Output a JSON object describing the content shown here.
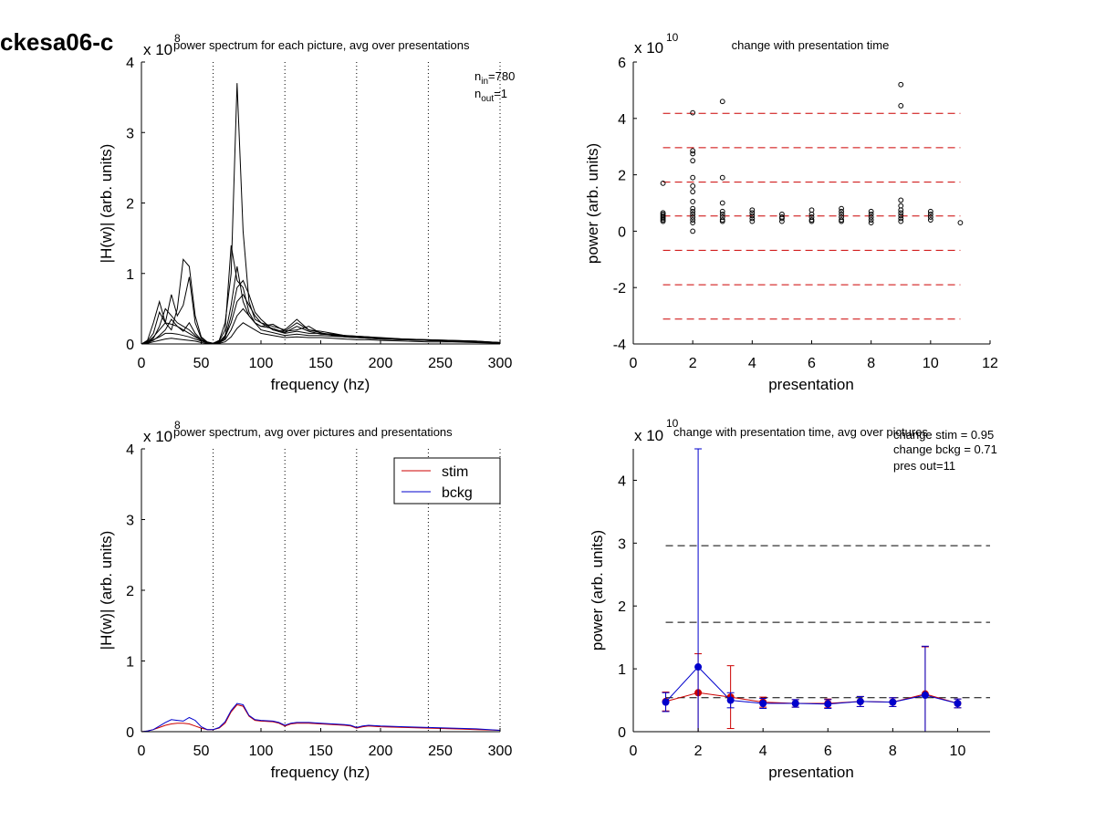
{
  "figure_title": "ckesa06-c",
  "chart_data": [
    {
      "id": "top-left",
      "type": "line",
      "title": "power spectrum for each picture, avg over presentations",
      "xlabel": "frequency (hz)",
      "ylabel": "|H(w)| (arb. units)",
      "y_multiplier": "x 10",
      "y_exponent": "8",
      "xlim": [
        0,
        300
      ],
      "ylim": [
        0,
        4
      ],
      "xticks": [
        0,
        50,
        100,
        150,
        200,
        250,
        300
      ],
      "yticks": [
        0,
        1,
        2,
        3,
        4
      ],
      "vlines": [
        60,
        120,
        180,
        240,
        300
      ],
      "annotation": {
        "n_in_label": "n",
        "n_in_sub": "in",
        "n_in_value": "=780",
        "n_out_label": "n",
        "n_out_sub": "out",
        "n_out_value": "=1"
      },
      "x": [
        0,
        5,
        10,
        15,
        20,
        25,
        30,
        35,
        40,
        45,
        50,
        55,
        60,
        65,
        70,
        75,
        80,
        85,
        90,
        95,
        100,
        110,
        120,
        130,
        140,
        150,
        160,
        170,
        180,
        190,
        200,
        220,
        240,
        260,
        280,
        300
      ],
      "series": [
        {
          "values": [
            0,
            0.02,
            0.06,
            0.1,
            0.15,
            0.15,
            0.14,
            0.12,
            0.1,
            0.07,
            0.04,
            0.02,
            0.01,
            0.02,
            0.06,
            0.2,
            0.4,
            0.5,
            0.4,
            0.3,
            0.2,
            0.16,
            0.12,
            0.14,
            0.12,
            0.12,
            0.11,
            0.1,
            0.09,
            0.08,
            0.07,
            0.06,
            0.05,
            0.04,
            0.03,
            0.02
          ]
        },
        {
          "values": [
            0,
            0.01,
            0.03,
            0.05,
            0.07,
            0.08,
            0.07,
            0.06,
            0.05,
            0.04,
            0.02,
            0.01,
            0.005,
            0.01,
            0.03,
            0.1,
            0.22,
            0.3,
            0.25,
            0.2,
            0.15,
            0.12,
            0.09,
            0.1,
            0.09,
            0.09,
            0.08,
            0.07,
            0.06,
            0.06,
            0.05,
            0.04,
            0.03,
            0.03,
            0.02,
            0.01
          ]
        },
        {
          "values": [
            0,
            0.03,
            0.1,
            0.2,
            0.3,
            0.28,
            0.25,
            0.2,
            0.15,
            0.1,
            0.05,
            0.02,
            0.01,
            0.03,
            0.1,
            0.3,
            0.6,
            0.7,
            0.55,
            0.4,
            0.3,
            0.2,
            0.15,
            0.18,
            0.15,
            0.15,
            0.13,
            0.12,
            0.11,
            0.1,
            0.08,
            0.07,
            0.06,
            0.05,
            0.04,
            0.02
          ]
        },
        {
          "values": [
            0,
            0.05,
            0.3,
            0.6,
            0.3,
            0.2,
            0.5,
            1.2,
            1.1,
            0.4,
            0.1,
            0.03,
            0.01,
            0.05,
            0.3,
            1.0,
            3.7,
            1.6,
            0.6,
            0.35,
            0.3,
            0.25,
            0.2,
            0.35,
            0.2,
            0.18,
            0.15,
            0.12,
            0.11,
            0.1,
            0.09,
            0.07,
            0.06,
            0.05,
            0.04,
            0.02
          ]
        },
        {
          "values": [
            0,
            0.04,
            0.15,
            0.45,
            0.3,
            0.7,
            0.4,
            0.55,
            0.95,
            0.3,
            0.08,
            0.02,
            0.01,
            0.04,
            0.2,
            1.4,
            0.9,
            0.8,
            0.45,
            0.3,
            0.25,
            0.28,
            0.18,
            0.2,
            0.25,
            0.15,
            0.14,
            0.12,
            0.1,
            0.09,
            0.08,
            0.07,
            0.05,
            0.04,
            0.03,
            0.02
          ]
        },
        {
          "values": [
            0,
            0.02,
            0.08,
            0.25,
            0.5,
            0.4,
            0.3,
            0.25,
            0.2,
            0.12,
            0.05,
            0.02,
            0.01,
            0.02,
            0.08,
            0.4,
            0.8,
            0.9,
            0.7,
            0.45,
            0.35,
            0.2,
            0.18,
            0.3,
            0.2,
            0.16,
            0.12,
            0.1,
            0.09,
            0.08,
            0.07,
            0.06,
            0.05,
            0.04,
            0.03,
            0.02
          ]
        },
        {
          "values": [
            0,
            0.02,
            0.05,
            0.12,
            0.2,
            0.35,
            0.25,
            0.18,
            0.3,
            0.15,
            0.06,
            0.02,
            0.01,
            0.03,
            0.12,
            0.55,
            1.1,
            0.6,
            0.4,
            0.3,
            0.25,
            0.22,
            0.16,
            0.25,
            0.18,
            0.14,
            0.13,
            0.11,
            0.1,
            0.09,
            0.07,
            0.06,
            0.05,
            0.04,
            0.03,
            0.02
          ]
        }
      ]
    },
    {
      "id": "top-right",
      "type": "scatter",
      "title": "change with presentation time",
      "xlabel": "presentation",
      "ylabel": "power (arb. units)",
      "y_multiplier": "x 10",
      "y_exponent": "10",
      "xlim": [
        0,
        12
      ],
      "ylim": [
        -4,
        6
      ],
      "xticks": [
        0,
        2,
        4,
        6,
        8,
        10,
        12
      ],
      "yticks": [
        -4,
        -2,
        0,
        2,
        4,
        6
      ],
      "hlines": [
        4.18,
        2.96,
        1.74,
        0.54,
        -0.68,
        -1.9,
        -3.12
      ],
      "hline_color": "#cc0000",
      "points": [
        [
          1,
          1.7
        ],
        [
          1,
          0.65
        ],
        [
          1,
          0.6
        ],
        [
          1,
          0.55
        ],
        [
          1,
          0.5
        ],
        [
          1,
          0.45
        ],
        [
          1,
          0.4
        ],
        [
          1,
          0.35
        ],
        [
          2,
          4.2
        ],
        [
          2,
          2.85
        ],
        [
          2,
          2.75
        ],
        [
          2,
          2.5
        ],
        [
          2,
          1.9
        ],
        [
          2,
          1.6
        ],
        [
          2,
          1.4
        ],
        [
          2,
          1.05
        ],
        [
          2,
          0.8
        ],
        [
          2,
          0.7
        ],
        [
          2,
          0.6
        ],
        [
          2,
          0.5
        ],
        [
          2,
          0.4
        ],
        [
          2,
          0.3
        ],
        [
          2,
          0.0
        ],
        [
          3,
          4.6
        ],
        [
          3,
          1.9
        ],
        [
          3,
          1.0
        ],
        [
          3,
          0.7
        ],
        [
          3,
          0.6
        ],
        [
          3,
          0.5
        ],
        [
          3,
          0.4
        ],
        [
          3,
          0.35
        ],
        [
          4,
          0.75
        ],
        [
          4,
          0.65
        ],
        [
          4,
          0.55
        ],
        [
          4,
          0.45
        ],
        [
          4,
          0.35
        ],
        [
          5,
          0.6
        ],
        [
          5,
          0.5
        ],
        [
          5,
          0.45
        ],
        [
          5,
          0.35
        ],
        [
          6,
          0.75
        ],
        [
          6,
          0.6
        ],
        [
          6,
          0.5
        ],
        [
          6,
          0.4
        ],
        [
          6,
          0.35
        ],
        [
          7,
          0.8
        ],
        [
          7,
          0.7
        ],
        [
          7,
          0.6
        ],
        [
          7,
          0.5
        ],
        [
          7,
          0.4
        ],
        [
          7,
          0.35
        ],
        [
          8,
          0.7
        ],
        [
          8,
          0.6
        ],
        [
          8,
          0.5
        ],
        [
          8,
          0.4
        ],
        [
          8,
          0.3
        ],
        [
          9,
          5.2
        ],
        [
          9,
          4.45
        ],
        [
          9,
          1.1
        ],
        [
          9,
          0.9
        ],
        [
          9,
          0.75
        ],
        [
          9,
          0.65
        ],
        [
          9,
          0.55
        ],
        [
          9,
          0.45
        ],
        [
          9,
          0.35
        ],
        [
          10,
          0.7
        ],
        [
          10,
          0.6
        ],
        [
          10,
          0.5
        ],
        [
          10,
          0.4
        ],
        [
          11,
          0.3
        ]
      ]
    },
    {
      "id": "bottom-left",
      "type": "line",
      "title": "power spectrum, avg over pictures and presentations",
      "xlabel": "frequency (hz)",
      "ylabel": "|H(w)| (arb. units)",
      "y_multiplier": "x 10",
      "y_exponent": "8",
      "xlim": [
        0,
        300
      ],
      "ylim": [
        0,
        4
      ],
      "xticks": [
        0,
        50,
        100,
        150,
        200,
        250,
        300
      ],
      "yticks": [
        0,
        1,
        2,
        3,
        4
      ],
      "vlines": [
        60,
        120,
        180,
        240,
        300
      ],
      "legend": [
        "stim",
        "bckg"
      ],
      "legend_position": "top-right",
      "x": [
        0,
        5,
        10,
        15,
        20,
        25,
        30,
        35,
        40,
        45,
        50,
        55,
        60,
        65,
        70,
        75,
        80,
        85,
        90,
        95,
        100,
        110,
        115,
        120,
        125,
        130,
        140,
        150,
        160,
        170,
        175,
        180,
        185,
        190,
        200,
        220,
        240,
        260,
        280,
        300
      ],
      "series": [
        {
          "name": "stim",
          "color": "#cc0000",
          "values": [
            0,
            0.01,
            0.03,
            0.06,
            0.09,
            0.11,
            0.12,
            0.12,
            0.11,
            0.08,
            0.05,
            0.03,
            0.03,
            0.05,
            0.12,
            0.28,
            0.38,
            0.36,
            0.22,
            0.16,
            0.15,
            0.14,
            0.12,
            0.08,
            0.11,
            0.12,
            0.12,
            0.11,
            0.1,
            0.09,
            0.08,
            0.05,
            0.07,
            0.08,
            0.07,
            0.06,
            0.05,
            0.04,
            0.03,
            0.02
          ]
        },
        {
          "name": "bckg",
          "color": "#0000cc",
          "values": [
            0,
            0.01,
            0.03,
            0.08,
            0.13,
            0.17,
            0.16,
            0.15,
            0.2,
            0.16,
            0.07,
            0.03,
            0.03,
            0.06,
            0.14,
            0.3,
            0.4,
            0.38,
            0.23,
            0.17,
            0.16,
            0.15,
            0.13,
            0.09,
            0.12,
            0.13,
            0.13,
            0.12,
            0.11,
            0.1,
            0.09,
            0.06,
            0.08,
            0.09,
            0.08,
            0.07,
            0.06,
            0.05,
            0.04,
            0.02
          ]
        }
      ]
    },
    {
      "id": "bottom-right",
      "type": "line",
      "title": "change with presentation time, avg over pictures",
      "xlabel": "presentation",
      "ylabel": "power (arb. units)",
      "y_multiplier": "x 10",
      "y_exponent": "10",
      "xlim": [
        0,
        11
      ],
      "ylim": [
        0,
        4.5
      ],
      "xticks": [
        0,
        2,
        4,
        6,
        8,
        10
      ],
      "yticks": [
        0,
        1,
        2,
        3,
        4
      ],
      "hlines": [
        2.96,
        1.74,
        0.54
      ],
      "hline_color": "#000000",
      "annotations": [
        "change stim = 0.95",
        "change bckg = 0.71",
        "pres out=11"
      ],
      "x": [
        1,
        2,
        3,
        4,
        5,
        6,
        7,
        8,
        9,
        10
      ],
      "series": [
        {
          "name": "stim",
          "color": "#cc0000",
          "values": [
            0.48,
            0.62,
            0.55,
            0.47,
            0.45,
            0.45,
            0.48,
            0.47,
            0.6,
            0.45
          ],
          "err": [
            0.15,
            0.62,
            0.5,
            0.08,
            0.06,
            0.07,
            0.08,
            0.07,
            0.75,
            0.07
          ]
        },
        {
          "name": "bckg",
          "color": "#0000cc",
          "values": [
            0.47,
            1.03,
            0.5,
            0.45,
            0.45,
            0.44,
            0.48,
            0.47,
            0.58,
            0.45
          ],
          "err": [
            0.15,
            3.5,
            0.12,
            0.08,
            0.06,
            0.07,
            0.08,
            0.07,
            0.78,
            0.07
          ]
        }
      ]
    }
  ]
}
